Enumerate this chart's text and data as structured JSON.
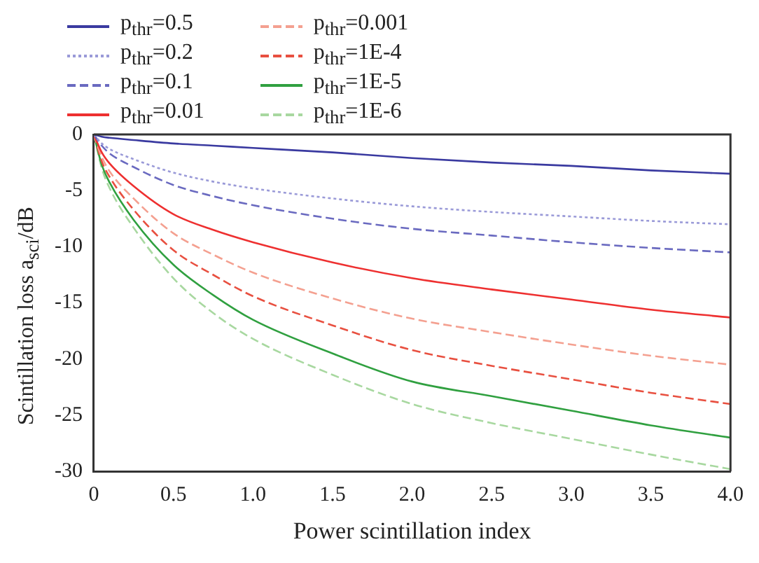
{
  "chart_data": {
    "type": "line",
    "xlabel": "Power scintillation index",
    "ylabel": "Scintillation loss a$_{sci}$/dB",
    "x": [
      0,
      0.05,
      0.1,
      0.25,
      0.5,
      0.75,
      1,
      1.5,
      2,
      2.5,
      3,
      3.5,
      4
    ],
    "xlim": [
      0,
      4
    ],
    "xticks": [
      0,
      0.5,
      {
        "value": 1,
        "label": "1.0"
      },
      1.5,
      {
        "value": 2,
        "label": "2.0"
      },
      2.5,
      {
        "value": 3,
        "label": "3.0"
      },
      3.5,
      {
        "value": 4,
        "label": "4.0"
      }
    ],
    "ylim": [
      -30,
      0
    ],
    "yticks": [
      -30,
      -25,
      -20,
      -15,
      -10,
      -5,
      0
    ],
    "grid": false,
    "legend": "top",
    "marker": "none",
    "series": [
      {
        "name": "p$_{thr}$=0.5",
        "color": "#3a3aa0",
        "line_style": "solid",
        "values": [
          0,
          -0.2,
          -0.3,
          -0.5,
          -0.8,
          -1.0,
          -1.2,
          -1.6,
          -2.1,
          -2.5,
          -2.8,
          -3.2,
          -3.5
        ]
      },
      {
        "name": "p$_{thr}$=0.2",
        "color": "#9a9ad8",
        "line_style": "dotted",
        "values": [
          0,
          -0.8,
          -1.3,
          -2.2,
          -3.4,
          -4.2,
          -4.8,
          -5.7,
          -6.4,
          -6.9,
          -7.3,
          -7.7,
          -8.0
        ]
      },
      {
        "name": "p$_{thr}$=0.1",
        "color": "#6a6ac0",
        "line_style": "dashed",
        "values": [
          0,
          -1.0,
          -1.7,
          -2.9,
          -4.5,
          -5.5,
          -6.3,
          -7.5,
          -8.4,
          -9.0,
          -9.6,
          -10.1,
          -10.5
        ]
      },
      {
        "name": "p$_{thr}$=0.01",
        "color": "#ee3030",
        "line_style": "solid",
        "values": [
          0,
          -1.6,
          -2.6,
          -4.6,
          -7.1,
          -8.5,
          -9.6,
          -11.4,
          -12.8,
          -13.8,
          -14.7,
          -15.6,
          -16.3
        ]
      },
      {
        "name": "p$_{thr}$=0.001",
        "color": "#f4a090",
        "line_style": "dashed",
        "values": [
          0,
          -2.0,
          -3.3,
          -5.7,
          -8.8,
          -10.7,
          -12.3,
          -14.6,
          -16.4,
          -17.6,
          -18.7,
          -19.7,
          -20.5
        ]
      },
      {
        "name": "p$_{thr}$=1E-4",
        "color": "#e85040",
        "line_style": "dashed",
        "values": [
          0,
          -2.4,
          -3.8,
          -6.7,
          -10.3,
          -12.5,
          -14.4,
          -17.0,
          -19.2,
          -20.6,
          -21.8,
          -23.0,
          -24.0
        ]
      },
      {
        "name": "p$_{thr}$=1E-5",
        "color": "#30a040",
        "line_style": "solid",
        "values": [
          0,
          -2.7,
          -4.3,
          -7.6,
          -11.6,
          -14.3,
          -16.5,
          -19.5,
          -22.0,
          -23.3,
          -24.6,
          -25.9,
          -27.0
        ]
      },
      {
        "name": "p$_{thr}$=1E-6",
        "color": "#a8d8a0",
        "line_style": "dashed",
        "values": [
          0,
          -3.0,
          -4.8,
          -8.3,
          -12.8,
          -15.9,
          -18.2,
          -21.4,
          -24.0,
          -25.7,
          -27.1,
          -28.5,
          -29.8
        ]
      }
    ]
  }
}
